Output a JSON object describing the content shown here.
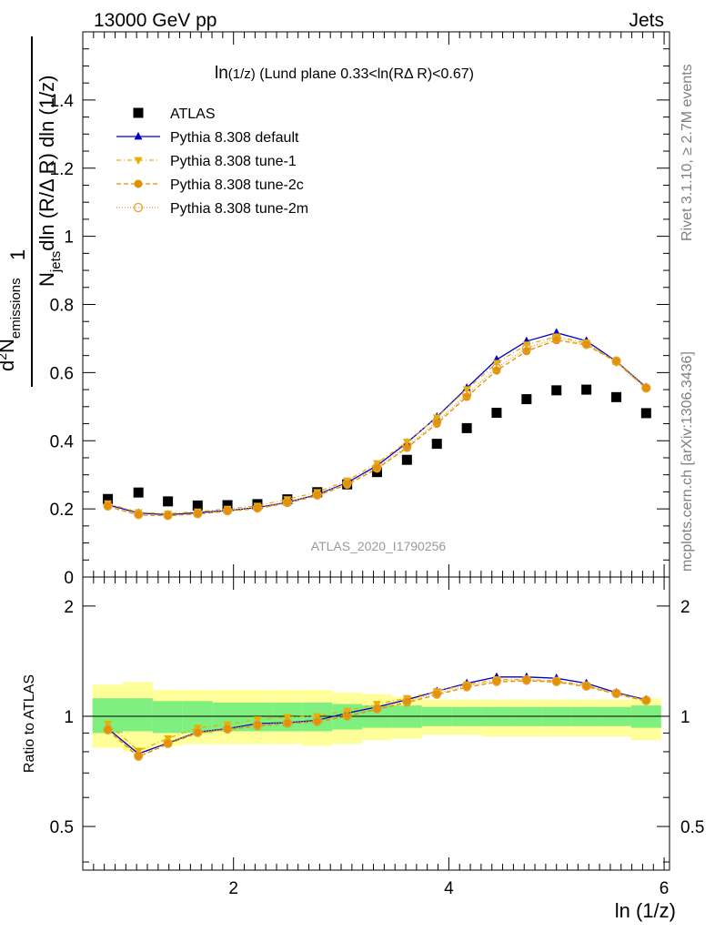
{
  "header": {
    "left": "13000 GeV pp",
    "right": "Jets"
  },
  "side_labels": {
    "rivet": "Rivet 3.1.10, ≥ 2.7M events",
    "mcplots": "mcplots.cern.ch [arXiv:1306.3436]"
  },
  "watermark": "ATLAS_2020_I1790256",
  "chart_data": [
    {
      "type": "scatter",
      "title_main": "ln",
      "title_sub": "(1/z)",
      "title_rest": " (Lund plane 0.33<ln(RΔ R)<0.67)",
      "ylabel": {
        "one": "1",
        "Njets_N": "N",
        "Njets_sub": "jets",
        "den_rest": "dln (R/Δ R) dln (1/z)",
        "num_d": "d",
        "num_sup": "2",
        "num_N": "N",
        "num_sub": "emissions"
      },
      "xlim": [
        0.6,
        6.05
      ],
      "ylim": [
        0,
        1.6
      ],
      "yticks": [
        "0",
        "0.2",
        "0.4",
        "0.6",
        "0.8",
        "1",
        "1.2",
        "1.4"
      ],
      "legend_position": "top-left",
      "x": [
        0.833,
        1.117,
        1.391,
        1.667,
        1.944,
        2.222,
        2.5,
        2.778,
        3.056,
        3.333,
        3.611,
        3.889,
        4.167,
        4.444,
        4.722,
        5.0,
        5.278,
        5.556,
        5.833
      ],
      "series": [
        {
          "name": "ATLAS",
          "color": "#000000",
          "marker": "square",
          "values": [
            0.229,
            0.248,
            0.222,
            0.21,
            0.211,
            0.214,
            0.228,
            0.249,
            0.272,
            0.308,
            0.344,
            0.391,
            0.437,
            0.482,
            0.522,
            0.548,
            0.55,
            0.528,
            0.481
          ]
        },
        {
          "name": "Pythia 8.308 default",
          "color": "#0000cc",
          "marker": "triangle-up",
          "dash": "",
          "values": [
            0.212,
            0.188,
            0.183,
            0.189,
            0.195,
            0.204,
            0.219,
            0.242,
            0.277,
            0.327,
            0.394,
            0.47,
            0.555,
            0.638,
            0.692,
            0.717,
            0.693,
            0.633,
            0.557
          ]
        },
        {
          "name": "Pythia 8.308 tune-1",
          "color": "#e8b000",
          "marker": "triangle-down",
          "dash": "5,3,1,3",
          "values": [
            0.216,
            0.19,
            0.186,
            0.192,
            0.2,
            0.209,
            0.228,
            0.249,
            0.283,
            0.334,
            0.397,
            0.468,
            0.551,
            0.628,
            0.682,
            0.706,
            0.687,
            0.63,
            0.553
          ]
        },
        {
          "name": "Pythia 8.308 tune-2c",
          "color": "#e09000",
          "marker": "circle",
          "dash": "5,3",
          "values": [
            0.207,
            0.182,
            0.18,
            0.185,
            0.193,
            0.201,
            0.217,
            0.239,
            0.271,
            0.318,
            0.379,
            0.45,
            0.529,
            0.606,
            0.663,
            0.695,
            0.681,
            0.632,
            0.554
          ]
        },
        {
          "name": "Pythia 8.308 tune-2m",
          "color": "#e8a030",
          "marker": "circle-open",
          "dash": "1,2",
          "values": [
            0.209,
            0.184,
            0.181,
            0.186,
            0.195,
            0.203,
            0.22,
            0.242,
            0.275,
            0.322,
            0.384,
            0.456,
            0.536,
            0.614,
            0.671,
            0.701,
            0.684,
            0.634,
            0.555
          ]
        }
      ]
    },
    {
      "type": "scatter",
      "ylabel": "Ratio to ATLAS",
      "xlabel": "ln (1/z)",
      "xlim": [
        0.6,
        6.05
      ],
      "ylim": [
        0.38,
        2.4
      ],
      "ylog": true,
      "yticks": [
        "0.5",
        "1",
        "2"
      ],
      "xticks": [
        "2",
        "4",
        "6"
      ],
      "reference": 1,
      "band_edges": [
        0.69,
        0.972,
        1.25,
        1.528,
        1.806,
        2.083,
        2.361,
        2.639,
        2.917,
        3.194,
        3.472,
        3.75,
        4.028,
        4.306,
        4.583,
        4.861,
        5.139,
        5.417,
        5.694,
        5.972
      ],
      "band_stat": {
        "color": "#7fef7f",
        "lo": [
          0.9,
          0.91,
          0.9,
          0.9,
          0.91,
          0.91,
          0.91,
          0.91,
          0.92,
          0.93,
          0.93,
          0.94,
          0.94,
          0.94,
          0.94,
          0.94,
          0.94,
          0.94,
          0.93
        ],
        "hi": [
          1.12,
          1.12,
          1.1,
          1.1,
          1.09,
          1.09,
          1.09,
          1.09,
          1.08,
          1.07,
          1.07,
          1.06,
          1.06,
          1.06,
          1.06,
          1.06,
          1.06,
          1.06,
          1.07
        ]
      },
      "band_total": {
        "color": "#ffff99",
        "lo": [
          0.82,
          0.8,
          0.83,
          0.84,
          0.84,
          0.84,
          0.84,
          0.83,
          0.84,
          0.86,
          0.87,
          0.89,
          0.89,
          0.88,
          0.88,
          0.88,
          0.88,
          0.88,
          0.86
        ],
        "hi": [
          1.22,
          1.24,
          1.18,
          1.18,
          1.18,
          1.18,
          1.18,
          1.18,
          1.16,
          1.15,
          1.13,
          1.11,
          1.11,
          1.11,
          1.11,
          1.11,
          1.11,
          1.11,
          1.12
        ]
      },
      "x": [
        0.833,
        1.117,
        1.391,
        1.667,
        1.944,
        2.222,
        2.5,
        2.778,
        3.056,
        3.333,
        3.611,
        3.889,
        4.167,
        4.444,
        4.722,
        5.0,
        5.278,
        5.556,
        5.833
      ],
      "series": [
        {
          "name": "Pythia 8.308 default",
          "color": "#0000cc",
          "marker": "triangle-up",
          "dash": "",
          "values": [
            0.925,
            0.79,
            0.845,
            0.905,
            0.925,
            0.955,
            0.96,
            0.975,
            1.02,
            1.06,
            1.11,
            1.17,
            1.23,
            1.28,
            1.28,
            1.27,
            1.23,
            1.16,
            1.11
          ]
        },
        {
          "name": "Pythia 8.308 tune-1",
          "color": "#e8b000",
          "marker": "triangle-down",
          "dash": "5,3,1,3",
          "values": [
            0.955,
            0.805,
            0.87,
            0.93,
            0.95,
            0.98,
            0.995,
            1.0,
            1.035,
            1.08,
            1.12,
            1.17,
            1.22,
            1.26,
            1.26,
            1.25,
            1.215,
            1.155,
            1.105
          ]
        },
        {
          "name": "Pythia 8.308 tune-2c",
          "color": "#e09000",
          "marker": "circle",
          "dash": "5,3",
          "values": [
            0.915,
            0.775,
            0.84,
            0.9,
            0.92,
            0.94,
            0.955,
            0.965,
            1.0,
            1.045,
            1.09,
            1.145,
            1.2,
            1.24,
            1.25,
            1.24,
            1.205,
            1.15,
            1.1
          ]
        },
        {
          "name": "Pythia 8.308 tune-2m",
          "color": "#e8a030",
          "marker": "circle-open",
          "dash": "1,2",
          "values": [
            0.92,
            0.78,
            0.845,
            0.905,
            0.925,
            0.948,
            0.962,
            0.972,
            1.01,
            1.05,
            1.1,
            1.155,
            1.21,
            1.25,
            1.258,
            1.245,
            1.21,
            1.155,
            1.105
          ]
        }
      ]
    }
  ]
}
